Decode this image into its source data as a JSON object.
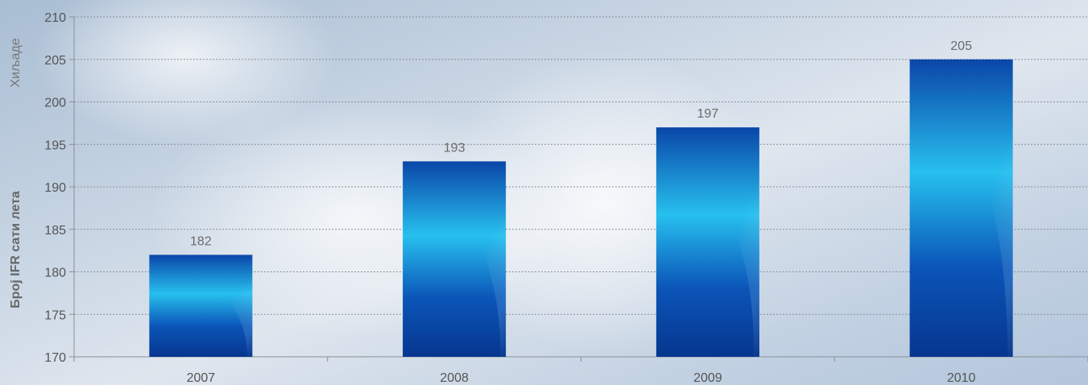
{
  "chart_data": {
    "type": "bar",
    "categories": [
      "2007",
      "2008",
      "2009",
      "2010"
    ],
    "values": [
      182,
      193,
      197,
      205
    ],
    "data_labels": [
      "182",
      "193",
      "197",
      "205"
    ],
    "ylim": [
      170,
      210
    ],
    "yticks": [
      "170",
      "175",
      "180",
      "185",
      "190",
      "195",
      "200",
      "205",
      "210"
    ],
    "ylabel": "Број IFR сати лета",
    "yunit": "Хиљаде",
    "xlabel": "",
    "grid": true,
    "legend": "none",
    "colors": {
      "bar_dark": "#0a3f9e",
      "bar_light": "#29c3f0",
      "grid": "#8a8f96",
      "axis": "#8a8f96"
    }
  }
}
